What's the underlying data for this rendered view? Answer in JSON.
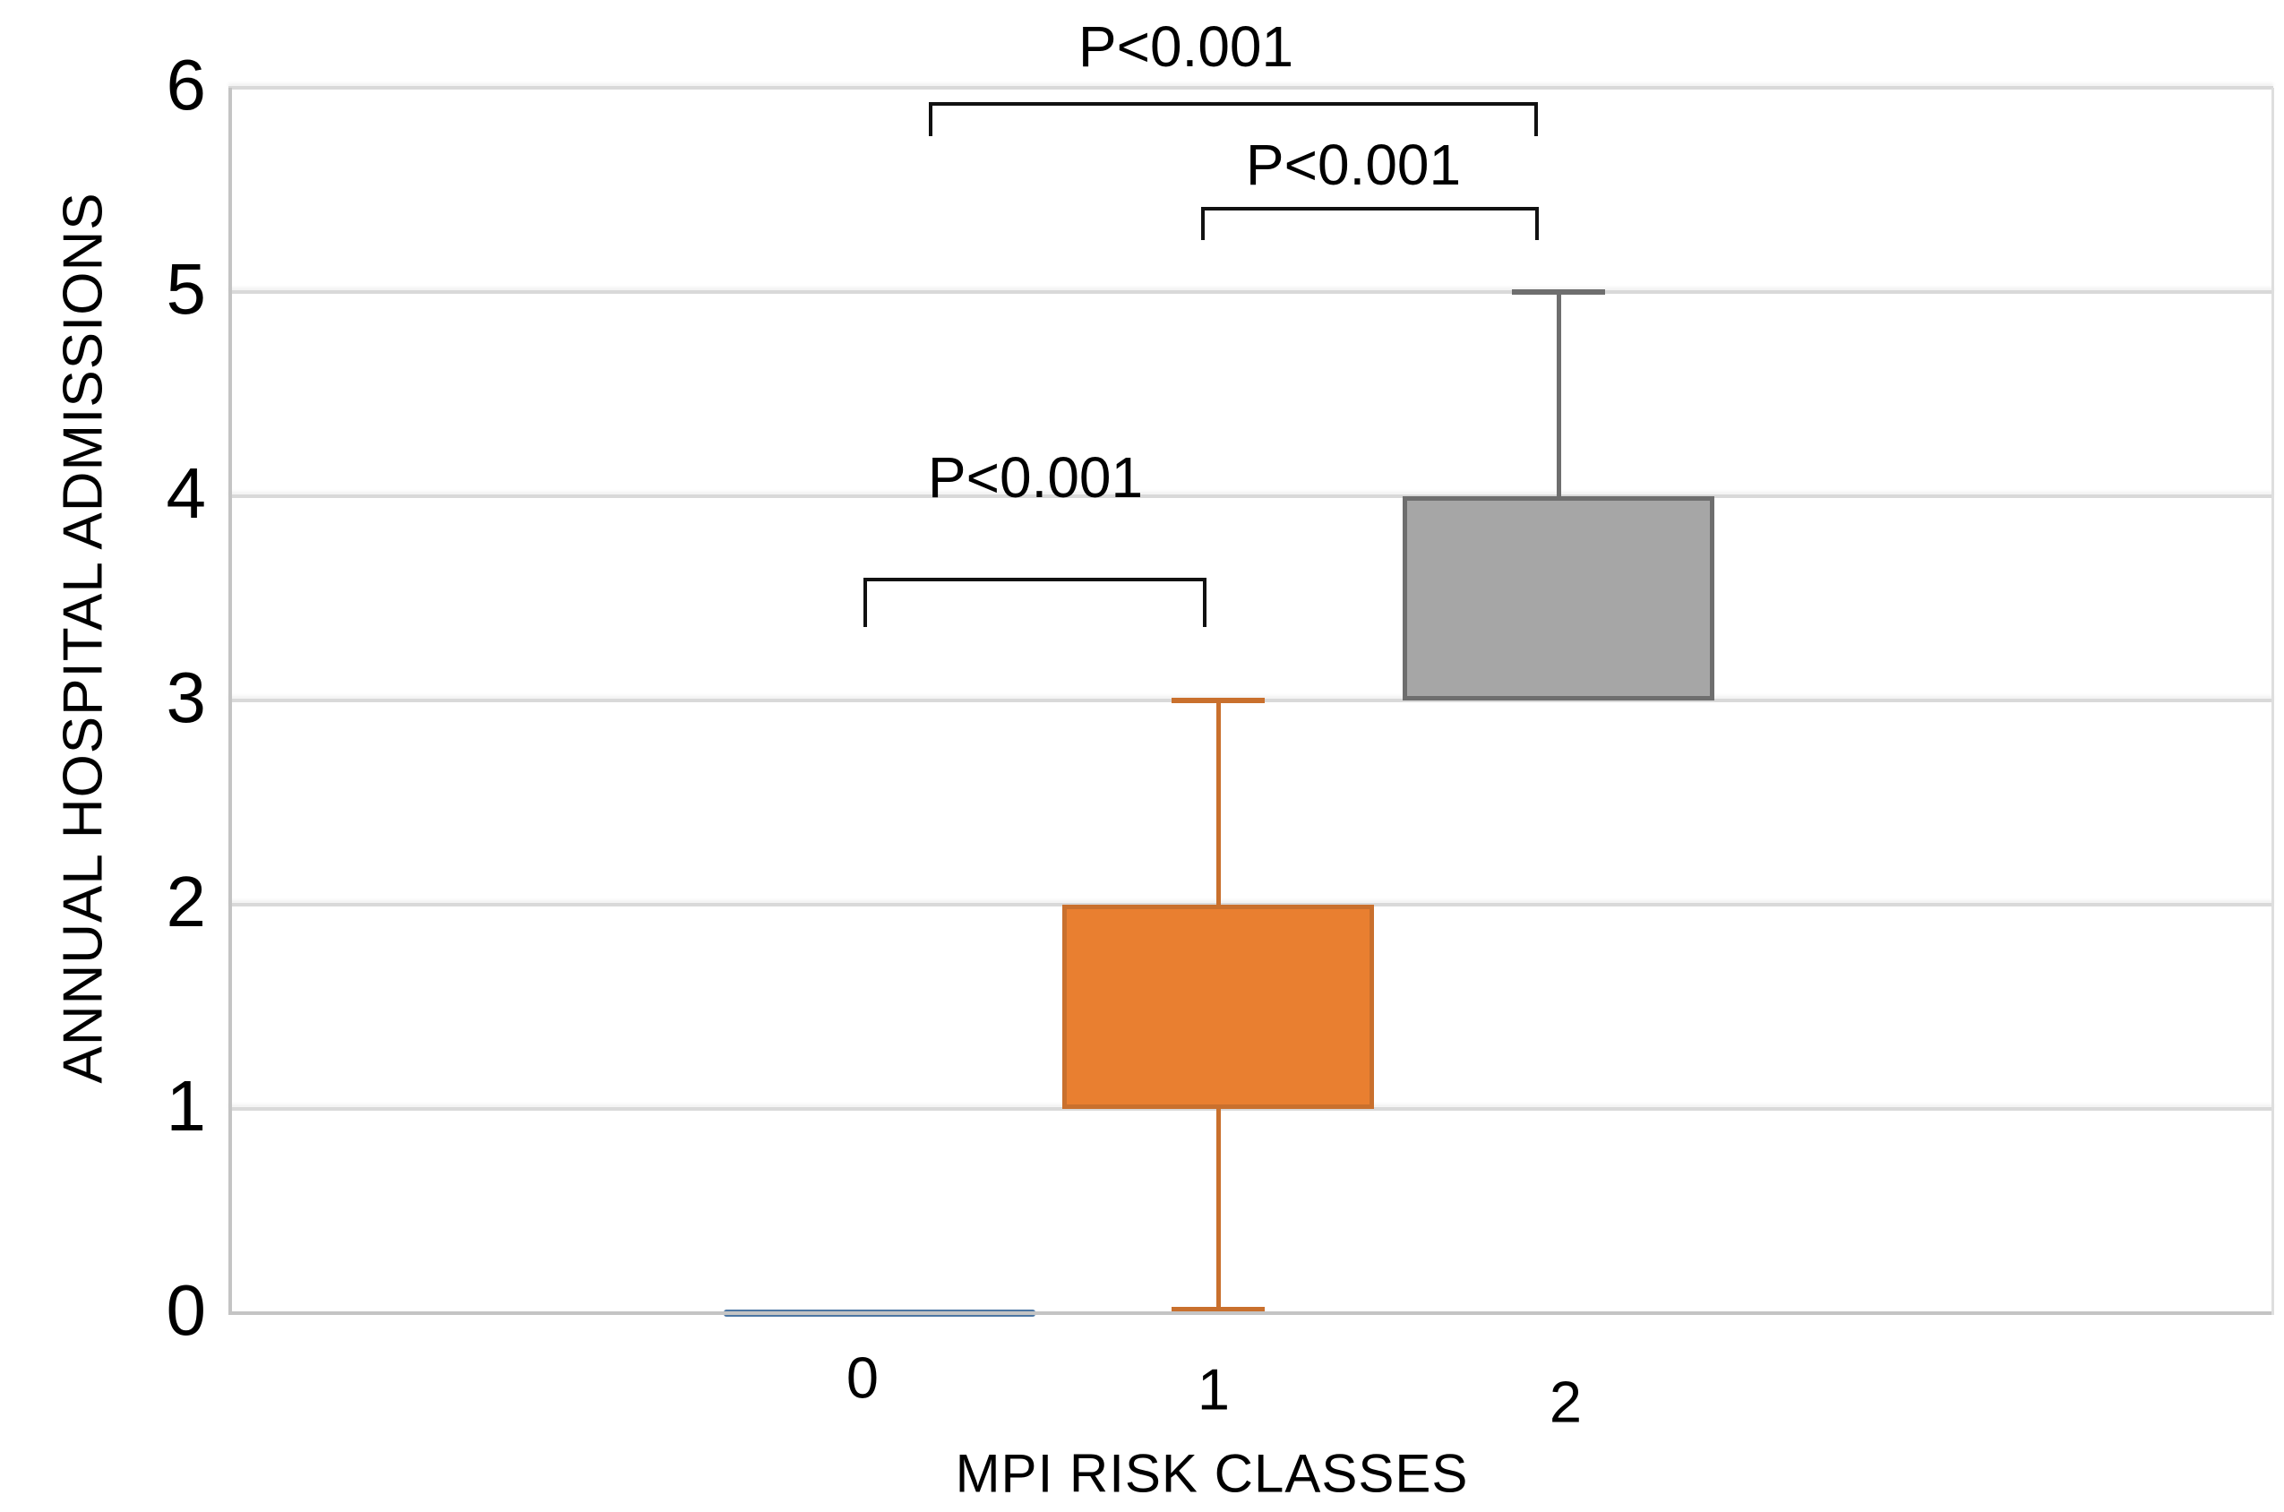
{
  "figure": {
    "background": "#ffffff"
  },
  "chart_data": {
    "type": "box",
    "title": "",
    "xlabel": "MPI RISK CLASSES",
    "ylabel": "ANNUAL HOSPITAL ADMISSIONS",
    "ylim": [
      0,
      6
    ],
    "yticks": [
      0,
      1,
      2,
      3,
      4,
      5,
      6
    ],
    "grid": "horizontal-light-gray",
    "legend": "none",
    "categories": [
      "0",
      "1",
      "2"
    ],
    "series": [
      {
        "category": "0",
        "min": 0,
        "q1": 0,
        "median": 0,
        "q3": 0,
        "max": 0,
        "fill": "#4c76a3",
        "edge": "#4c76a3"
      },
      {
        "category": "1",
        "min": 0,
        "q1": 1,
        "median": null,
        "q3": 2,
        "max": 3,
        "fill": "#e97f30",
        "edge": "#c9702d"
      },
      {
        "category": "2",
        "min": 3,
        "q1": 3,
        "median": null,
        "q3": 4,
        "max": 5,
        "fill": "#a6a6a6",
        "edge": "#6e6e6e"
      }
    ],
    "annotations": [
      {
        "label": "P<0.001",
        "between": [
          "0",
          "2"
        ]
      },
      {
        "label": "P<0.001",
        "between": [
          "1",
          "2"
        ]
      },
      {
        "label": "P<0.001",
        "between": [
          "0",
          "1"
        ]
      }
    ],
    "colors": {
      "gridline": "#d9d9d9",
      "axis": "#c4c4c4",
      "text": "#000000"
    }
  }
}
